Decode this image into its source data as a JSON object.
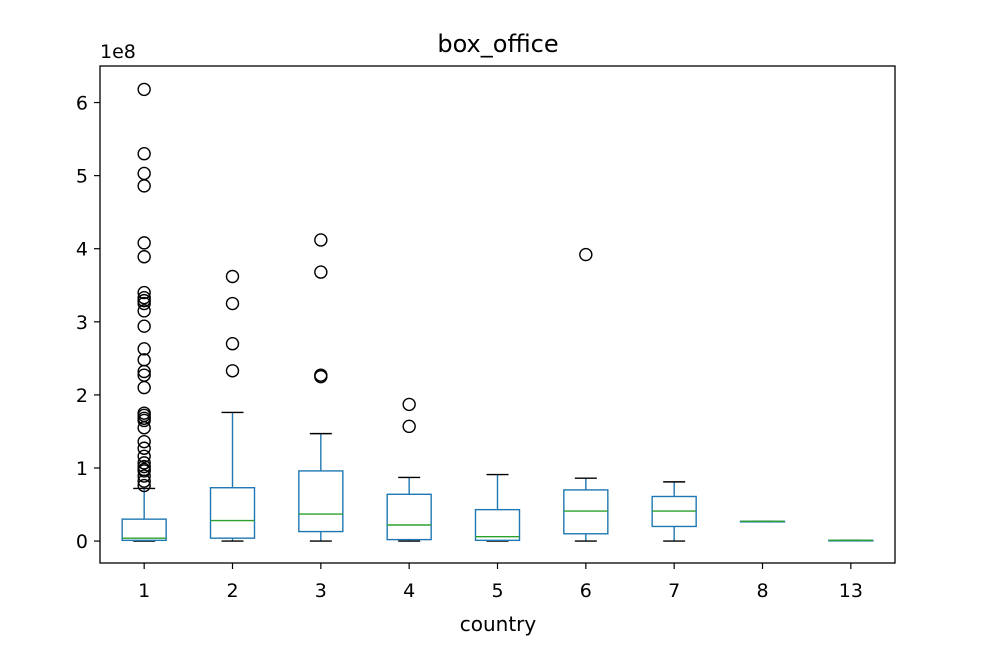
{
  "chart_data": {
    "type": "box",
    "title": "box_office",
    "xlabel": "country",
    "ylabel": "",
    "scale_label": "1e8",
    "ylim": [
      -0.3,
      6.5
    ],
    "yticks": [
      0,
      1,
      2,
      3,
      4,
      5,
      6
    ],
    "grid": false,
    "categories": [
      "1",
      "2",
      "3",
      "4",
      "5",
      "6",
      "7",
      "8",
      "13"
    ],
    "boxes": [
      {
        "category": "1",
        "whislo": 0.0,
        "q1": 0.01,
        "med": 0.04,
        "q3": 0.3,
        "whishi": 0.72,
        "fliers": [
          6.18,
          5.3,
          5.03,
          4.86,
          4.08,
          3.89,
          3.4,
          3.33,
          3.29,
          3.25,
          3.15,
          2.94,
          2.63,
          2.48,
          2.32,
          2.27,
          2.1,
          1.75,
          1.72,
          1.68,
          1.65,
          1.55,
          1.36,
          1.27,
          1.16,
          1.07,
          1.02,
          0.98,
          0.96,
          0.89,
          0.82,
          0.76
        ]
      },
      {
        "category": "2",
        "whislo": 0.0,
        "q1": 0.04,
        "med": 0.28,
        "q3": 0.73,
        "whishi": 1.76,
        "fliers": [
          3.62,
          3.25,
          2.7,
          2.33
        ]
      },
      {
        "category": "3",
        "whislo": 0.0,
        "q1": 0.13,
        "med": 0.37,
        "q3": 0.96,
        "whishi": 1.47,
        "fliers": [
          4.12,
          3.68,
          2.27,
          2.25
        ]
      },
      {
        "category": "4",
        "whislo": 0.0,
        "q1": 0.02,
        "med": 0.22,
        "q3": 0.64,
        "whishi": 0.87,
        "fliers": [
          1.87,
          1.57
        ]
      },
      {
        "category": "5",
        "whislo": 0.0,
        "q1": 0.01,
        "med": 0.06,
        "q3": 0.43,
        "whishi": 0.91,
        "fliers": []
      },
      {
        "category": "6",
        "whislo": 0.0,
        "q1": 0.1,
        "med": 0.41,
        "q3": 0.7,
        "whishi": 0.86,
        "fliers": [
          3.92
        ]
      },
      {
        "category": "7",
        "whislo": 0.0,
        "q1": 0.2,
        "med": 0.41,
        "q3": 0.61,
        "whishi": 0.81,
        "fliers": []
      },
      {
        "category": "8",
        "whislo": 0.27,
        "q1": 0.27,
        "med": 0.27,
        "q3": 0.27,
        "whishi": 0.27,
        "fliers": []
      },
      {
        "category": "13",
        "whislo": 0.01,
        "q1": 0.01,
        "med": 0.01,
        "q3": 0.01,
        "whishi": 0.01,
        "fliers": []
      }
    ],
    "colors": {
      "box": "#1f77b4",
      "median": "#2ca02c",
      "whisker_cap": "#000000",
      "flier": "#000000",
      "axes": "#000000"
    }
  }
}
